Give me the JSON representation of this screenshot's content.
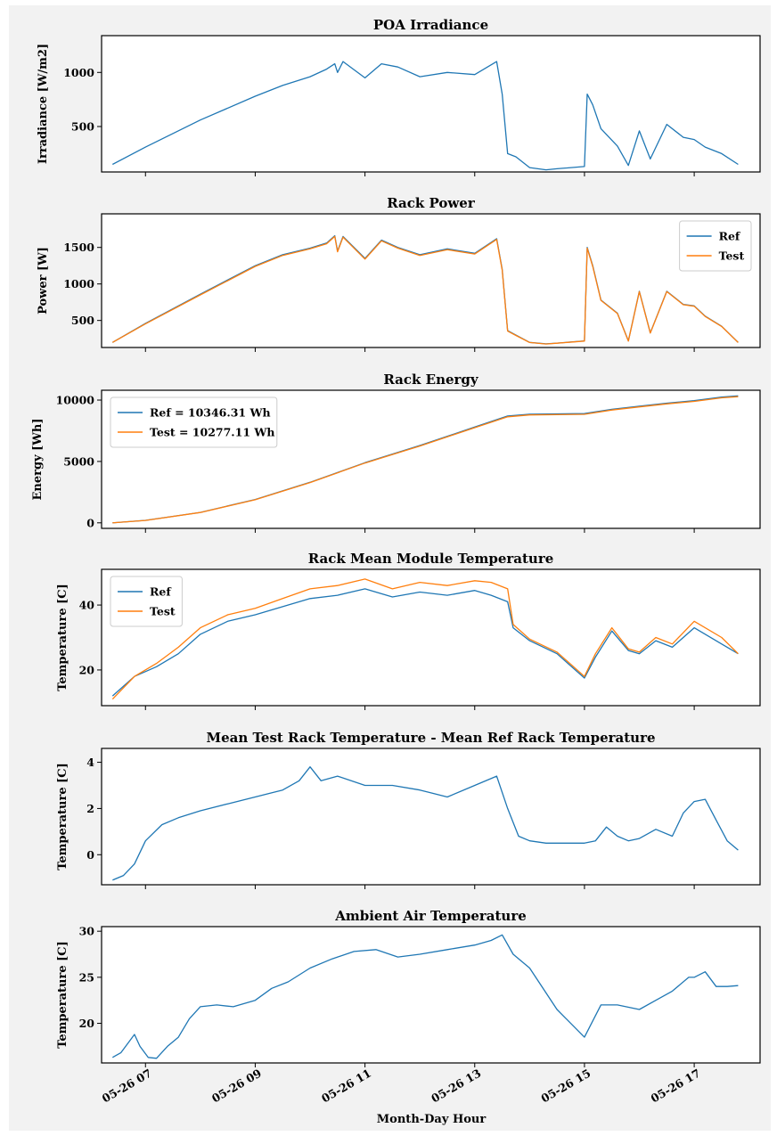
{
  "figure": {
    "xlabel": "Month-Day Hour",
    "x_ticks": [
      "05-26 07",
      "05-26 09",
      "05-26 11",
      "05-26 13",
      "05-26 15",
      "05-26 17"
    ],
    "x_tick_hours": [
      7,
      9,
      11,
      13,
      15,
      17
    ],
    "xlim": [
      6.2,
      18.2
    ]
  },
  "colors": {
    "ref": "#1f77b4",
    "test": "#ff7f0e"
  },
  "chart_data": [
    {
      "type": "line",
      "title": "POA Irradiance",
      "ylabel": "Irradiance [W/m2]",
      "ylim": [
        80,
        1340
      ],
      "yticks": [
        500,
        1000
      ],
      "xlabel": "",
      "grid": false,
      "series": [
        {
          "color": "#1f77b4",
          "x": [
            6.4,
            7.0,
            8.0,
            9.0,
            9.5,
            10.0,
            10.3,
            10.45,
            10.5,
            10.6,
            11.0,
            11.3,
            11.6,
            12.0,
            12.5,
            13.0,
            13.4,
            13.5,
            13.6,
            13.75,
            14.0,
            14.3,
            14.5,
            15.0,
            15.05,
            15.15,
            15.3,
            15.6,
            15.8,
            16.0,
            16.2,
            16.5,
            16.8,
            17.0,
            17.2,
            17.5,
            17.8
          ],
          "y": [
            150,
            310,
            560,
            780,
            880,
            960,
            1030,
            1080,
            1000,
            1100,
            950,
            1080,
            1050,
            960,
            1000,
            980,
            1100,
            800,
            250,
            220,
            120,
            100,
            110,
            130,
            800,
            700,
            480,
            320,
            140,
            460,
            200,
            520,
            400,
            380,
            310,
            250,
            150
          ]
        }
      ]
    },
    {
      "type": "line",
      "title": "Rack Power",
      "ylabel": "Power [W]",
      "ylim": [
        130,
        1960
      ],
      "yticks": [
        500,
        1000,
        1500
      ],
      "xlabel": "",
      "grid": false,
      "legend": {
        "location": "upper-right",
        "entries": [
          "Ref",
          "Test"
        ]
      },
      "series": [
        {
          "name": "Ref",
          "color": "#1f77b4",
          "x": [
            6.4,
            7.0,
            8.0,
            9.0,
            9.5,
            10.0,
            10.3,
            10.45,
            10.5,
            10.6,
            11.0,
            11.3,
            11.6,
            12.0,
            12.5,
            13.0,
            13.4,
            13.5,
            13.6,
            13.75,
            14.0,
            14.3,
            14.5,
            15.0,
            15.05,
            15.15,
            15.3,
            15.6,
            15.8,
            16.0,
            16.2,
            16.5,
            16.8,
            17.0,
            17.2,
            17.5,
            17.8
          ],
          "y": [
            200,
            460,
            860,
            1250,
            1400,
            1490,
            1560,
            1660,
            1450,
            1650,
            1350,
            1600,
            1500,
            1400,
            1480,
            1420,
            1620,
            1200,
            360,
            300,
            200,
            180,
            190,
            220,
            1500,
            1250,
            780,
            600,
            220,
            900,
            330,
            900,
            720,
            700,
            560,
            420,
            200
          ]
        },
        {
          "name": "Test",
          "color": "#ff7f0e",
          "x": [
            6.4,
            7.0,
            8.0,
            9.0,
            9.5,
            10.0,
            10.3,
            10.45,
            10.5,
            10.6,
            11.0,
            11.3,
            11.6,
            12.0,
            12.5,
            13.0,
            13.4,
            13.5,
            13.6,
            13.75,
            14.0,
            14.3,
            14.5,
            15.0,
            15.05,
            15.15,
            15.3,
            15.6,
            15.8,
            16.0,
            16.2,
            16.5,
            16.8,
            17.0,
            17.2,
            17.5,
            17.8
          ],
          "y": [
            200,
            455,
            850,
            1240,
            1390,
            1480,
            1550,
            1650,
            1440,
            1640,
            1340,
            1590,
            1490,
            1390,
            1470,
            1410,
            1610,
            1190,
            355,
            295,
            198,
            178,
            188,
            218,
            1490,
            1240,
            775,
            595,
            218,
            895,
            328,
            895,
            715,
            695,
            555,
            418,
            198
          ]
        }
      ]
    },
    {
      "type": "line",
      "title": "Rack Energy",
      "ylabel": "Energy [Wh]",
      "ylim": [
        -450,
        10800
      ],
      "yticks": [
        0,
        5000,
        10000
      ],
      "xlabel": "",
      "grid": false,
      "legend": {
        "location": "upper-left",
        "entries": [
          "Ref = 10346.31 Wh",
          "Test = 10277.11 Wh"
        ]
      },
      "series": [
        {
          "name": "Ref = 10346.31 Wh",
          "color": "#1f77b4",
          "x": [
            6.4,
            7.0,
            8.0,
            9.0,
            10.0,
            11.0,
            12.0,
            13.0,
            13.6,
            14.0,
            15.0,
            15.5,
            16.0,
            16.5,
            17.0,
            17.5,
            17.8
          ],
          "y": [
            0,
            200,
            850,
            1900,
            3300,
            4900,
            6300,
            7800,
            8700,
            8850,
            8900,
            9250,
            9500,
            9750,
            9950,
            10250,
            10346
          ]
        },
        {
          "name": "Test = 10277.11 Wh",
          "color": "#ff7f0e",
          "x": [
            6.4,
            7.0,
            8.0,
            9.0,
            10.0,
            11.0,
            12.0,
            13.0,
            13.6,
            14.0,
            15.0,
            15.5,
            16.0,
            16.5,
            17.0,
            17.5,
            17.8
          ],
          "y": [
            0,
            198,
            840,
            1880,
            3280,
            4870,
            6260,
            7750,
            8640,
            8790,
            8840,
            9190,
            9440,
            9690,
            9890,
            10180,
            10277
          ]
        }
      ]
    },
    {
      "type": "line",
      "title": "Rack Mean Module Temperature",
      "ylabel": "Temperature [C]",
      "ylim": [
        9,
        51
      ],
      "yticks": [
        20,
        40
      ],
      "xlabel": "",
      "grid": false,
      "legend": {
        "location": "upper-left",
        "entries": [
          "Ref",
          "Test"
        ]
      },
      "series": [
        {
          "name": "Ref",
          "color": "#1f77b4",
          "x": [
            6.4,
            6.8,
            7.2,
            7.6,
            8.0,
            8.5,
            9.0,
            9.5,
            10.0,
            10.5,
            11.0,
            11.5,
            12.0,
            12.5,
            13.0,
            13.3,
            13.6,
            13.7,
            14.0,
            14.5,
            15.0,
            15.2,
            15.5,
            15.8,
            16.0,
            16.3,
            16.6,
            17.0,
            17.5,
            17.8
          ],
          "y": [
            12,
            18,
            21,
            25,
            31,
            35,
            37,
            39.5,
            42,
            43,
            45,
            42.5,
            44,
            43,
            44.5,
            43,
            41,
            33,
            29,
            25,
            17.5,
            24,
            32,
            26,
            25,
            29,
            27,
            33,
            28,
            25
          ]
        },
        {
          "name": "Test",
          "color": "#ff7f0e",
          "x": [
            6.4,
            6.8,
            7.2,
            7.6,
            8.0,
            8.5,
            9.0,
            9.5,
            10.0,
            10.5,
            11.0,
            11.5,
            12.0,
            12.5,
            13.0,
            13.3,
            13.6,
            13.7,
            14.0,
            14.5,
            15.0,
            15.2,
            15.5,
            15.8,
            16.0,
            16.3,
            16.6,
            17.0,
            17.5,
            17.8
          ],
          "y": [
            11,
            18,
            22,
            27,
            33,
            37,
            39,
            42,
            45,
            46,
            48,
            45,
            47,
            46,
            47.5,
            47,
            45,
            34,
            29.5,
            25.5,
            18,
            25,
            33,
            26.5,
            25.5,
            30,
            28,
            35,
            30,
            25
          ]
        }
      ]
    },
    {
      "type": "line",
      "title": "Mean Test Rack Temperature - Mean Ref Rack Temperature",
      "ylabel": "Temperature [C]",
      "ylim": [
        -1.3,
        4.6
      ],
      "yticks": [
        0,
        2,
        4
      ],
      "xlabel": "",
      "grid": false,
      "series": [
        {
          "color": "#1f77b4",
          "x": [
            6.4,
            6.6,
            6.8,
            7.0,
            7.3,
            7.6,
            8.0,
            8.5,
            9.0,
            9.5,
            9.8,
            10.0,
            10.2,
            10.5,
            11.0,
            11.5,
            12.0,
            12.5,
            13.0,
            13.4,
            13.6,
            13.8,
            14.0,
            14.3,
            14.6,
            15.0,
            15.2,
            15.4,
            15.6,
            15.8,
            16.0,
            16.3,
            16.6,
            16.8,
            17.0,
            17.2,
            17.4,
            17.6,
            17.8
          ],
          "y": [
            -1.1,
            -0.9,
            -0.4,
            0.6,
            1.3,
            1.6,
            1.9,
            2.2,
            2.5,
            2.8,
            3.2,
            3.8,
            3.2,
            3.4,
            3.0,
            3.0,
            2.8,
            2.5,
            3.0,
            3.4,
            2.0,
            0.8,
            0.6,
            0.5,
            0.5,
            0.5,
            0.6,
            1.2,
            0.8,
            0.6,
            0.7,
            1.1,
            0.8,
            1.8,
            2.3,
            2.4,
            1.5,
            0.6,
            0.2
          ]
        }
      ]
    },
    {
      "type": "line",
      "title": "Ambient Air Temperature",
      "ylabel": "Temperature [C]",
      "ylim": [
        15.7,
        30.5
      ],
      "yticks": [
        20,
        25,
        30
      ],
      "xlabel": "Month-Day Hour",
      "grid": false,
      "series": [
        {
          "color": "#1f77b4",
          "x": [
            6.4,
            6.55,
            6.7,
            6.8,
            6.9,
            7.05,
            7.2,
            7.4,
            7.6,
            7.8,
            8.0,
            8.3,
            8.6,
            9.0,
            9.3,
            9.6,
            10.0,
            10.4,
            10.8,
            11.2,
            11.6,
            12.0,
            12.5,
            13.0,
            13.3,
            13.5,
            13.7,
            14.0,
            14.5,
            15.0,
            15.3,
            15.6,
            16.0,
            16.3,
            16.6,
            16.9,
            17.0,
            17.2,
            17.4,
            17.6,
            17.8
          ],
          "y": [
            16.3,
            16.8,
            18.0,
            18.8,
            17.5,
            16.3,
            16.2,
            17.5,
            18.5,
            20.5,
            21.8,
            22.0,
            21.8,
            22.5,
            23.8,
            24.5,
            26.0,
            27.0,
            27.8,
            28.0,
            27.2,
            27.5,
            28.0,
            28.5,
            29.0,
            29.6,
            27.5,
            26.0,
            21.5,
            18.5,
            22.0,
            22.0,
            21.5,
            22.5,
            23.5,
            25.0,
            25.0,
            25.6,
            24.0,
            24.0,
            24.1
          ]
        }
      ]
    }
  ]
}
